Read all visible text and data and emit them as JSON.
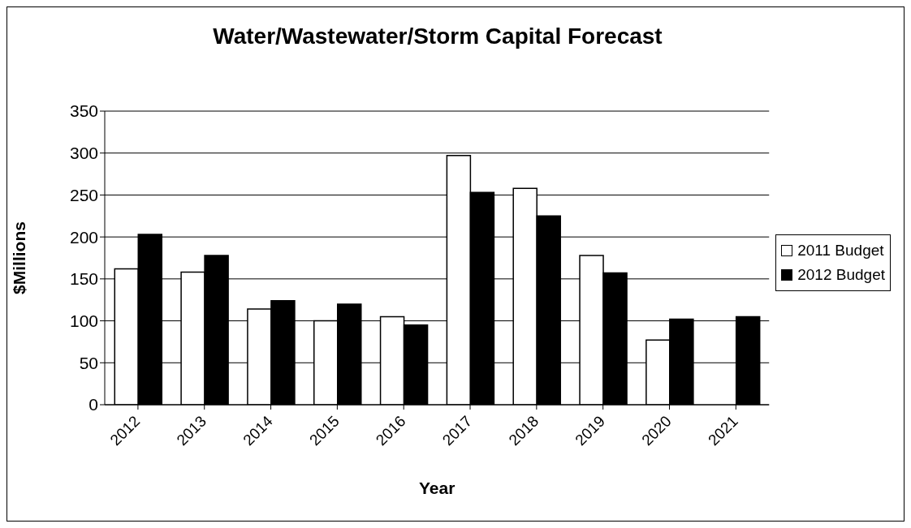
{
  "chart_data": {
    "type": "bar",
    "title": "Water/Wastewater/Storm Capital Forecast",
    "xlabel": "Year",
    "ylabel": "$Millions",
    "categories": [
      "2012",
      "2013",
      "2014",
      "2015",
      "2016",
      "2017",
      "2018",
      "2019",
      "2020",
      "2021"
    ],
    "series": [
      {
        "name": "2011 Budget",
        "color": "#ffffff",
        "values": [
          162,
          158,
          114,
          100,
          105,
          297,
          258,
          178,
          77,
          null
        ]
      },
      {
        "name": "2012 Budget",
        "color": "#000000",
        "values": [
          203,
          178,
          124,
          120,
          95,
          253,
          225,
          157,
          102,
          105
        ]
      }
    ],
    "ylim": [
      0,
      350
    ],
    "yticks": [
      0,
      50,
      100,
      150,
      200,
      250,
      300,
      350
    ],
    "grid": "y",
    "legend": "right"
  }
}
